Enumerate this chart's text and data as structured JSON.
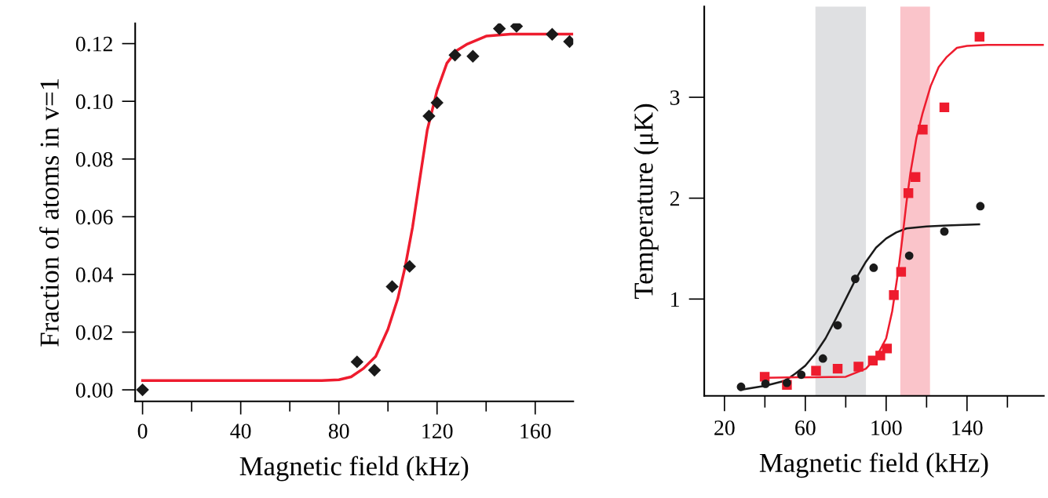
{
  "chart_data": [
    {
      "type": "scatter",
      "xlabel": "Magnetic field (kHz)",
      "ylabel": "Fraction of atoms in v=1",
      "xlim": [
        -3,
        175.5
      ],
      "ylim": [
        -0.004,
        0.127
      ],
      "xticks": [
        0,
        {
          "value": 20,
          "label": null
        },
        40,
        {
          "value": 60,
          "label": null
        },
        80,
        {
          "value": 100,
          "label": null
        },
        120,
        {
          "value": 140,
          "label": null
        },
        160
      ],
      "yticks": [
        {
          "value": 0,
          "label": "0.00"
        },
        {
          "value": 0.02,
          "label": "0.02"
        },
        {
          "value": 0.04,
          "label": "0.04"
        },
        {
          "value": 0.06,
          "label": "0.06"
        },
        {
          "value": 0.08,
          "label": "0.08"
        },
        {
          "value": 0.1,
          "label": "0.10"
        },
        {
          "value": 0.12,
          "label": "0.12"
        }
      ],
      "grid": false,
      "series": [
        {
          "type": "line",
          "color": "#ee1c2e",
          "marker": "none",
          "x": [
            0,
            73,
            80,
            85,
            90,
            95,
            100,
            104,
            107,
            110,
            113,
            116,
            120,
            124,
            128,
            132,
            140,
            150,
            175
          ],
          "values": [
            0.0032,
            0.0032,
            0.0035,
            0.0045,
            0.0074,
            0.0116,
            0.021,
            0.0316,
            0.0426,
            0.0563,
            0.0732,
            0.09,
            0.1037,
            0.1132,
            0.1176,
            0.1197,
            0.1226,
            0.1233,
            0.1233
          ]
        },
        {
          "color": "#1a1a1a",
          "marker": "diamond",
          "x": [
            0,
            87.4,
            94.5,
            101.7,
            108.8,
            116.7,
            120,
            127.3,
            134.6,
            145.4,
            152.4,
            166.9,
            174
          ],
          "values": [
            0.0,
            0.0097,
            0.0068,
            0.0358,
            0.0428,
            0.0949,
            0.0995,
            0.116,
            0.1156,
            0.1252,
            0.126,
            0.1232,
            0.1207
          ]
        }
      ]
    },
    {
      "type": "scatter",
      "xlabel": "Magnetic field (kHz)",
      "ylabel": "Temperature (μK)",
      "xlim": [
        10,
        178
      ],
      "ylim": [
        0.04,
        3.9
      ],
      "xticks": [
        20,
        {
          "value": 40,
          "label": null
        },
        60,
        {
          "value": 80,
          "label": null
        },
        100,
        {
          "value": 120,
          "label": null
        },
        140,
        {
          "value": 160,
          "label": null
        }
      ],
      "yticks": [
        1,
        2,
        3
      ],
      "grid": false,
      "bands": [
        {
          "axis": "x",
          "from": 65,
          "to": 90,
          "label": null,
          "color": "#c4c6ca"
        },
        {
          "axis": "x",
          "from": 107,
          "to": 121.7,
          "label": null,
          "color": "#f6949e"
        }
      ],
      "series": [
        {
          "type": "line",
          "color": "#1a1a1a",
          "marker": "none",
          "x": [
            28,
            40,
            50,
            55,
            60,
            65,
            70,
            75,
            80,
            85,
            90,
            95,
            100,
            105,
            110,
            120,
            130,
            146
          ],
          "values": [
            0.1,
            0.14,
            0.19,
            0.26,
            0.34,
            0.46,
            0.61,
            0.8,
            1.0,
            1.2,
            1.37,
            1.51,
            1.6,
            1.66,
            1.7,
            1.72,
            1.73,
            1.74
          ]
        },
        {
          "type": "line",
          "color": "#ee1c2e",
          "marker": "none",
          "x": [
            40,
            80,
            90,
            95,
            100,
            103,
            106,
            108,
            110,
            112,
            115,
            118,
            122,
            126,
            130,
            135,
            140,
            150,
            178
          ],
          "values": [
            0.22,
            0.23,
            0.31,
            0.42,
            0.61,
            0.88,
            1.28,
            1.6,
            1.95,
            2.25,
            2.6,
            2.84,
            3.11,
            3.3,
            3.4,
            3.49,
            3.51,
            3.52,
            3.52
          ]
        },
        {
          "color": "#ee1c2e",
          "marker": "square",
          "x": [
            39.9,
            50.9,
            65.3,
            76.0,
            86.3,
            93.4,
            97.1,
            100.4,
            103.8,
            107.4,
            111.0,
            114.5,
            118.1,
            128.8,
            146.2
          ],
          "values": [
            0.23,
            0.15,
            0.29,
            0.31,
            0.33,
            0.39,
            0.44,
            0.51,
            1.04,
            1.27,
            2.05,
            2.21,
            2.68,
            2.9,
            3.6
          ]
        },
        {
          "color": "#1a1a1a",
          "marker": "circle",
          "x": [
            28.2,
            40.3,
            50.9,
            58.0,
            68.7,
            76.0,
            84.7,
            93.8,
            111.4,
            128.8,
            146.6
          ],
          "values": [
            0.13,
            0.16,
            0.17,
            0.25,
            0.41,
            0.74,
            1.2,
            1.31,
            1.43,
            1.67,
            1.92
          ]
        }
      ]
    }
  ]
}
